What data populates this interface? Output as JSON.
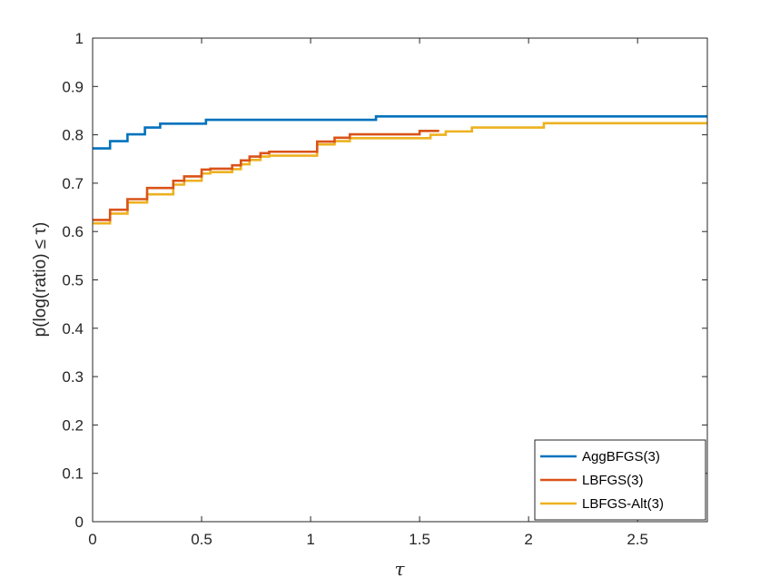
{
  "chart_data": {
    "type": "line",
    "step": true,
    "xlabel": "τ",
    "ylabel": "p(log(ratio) ≤ τ)",
    "xlim": [
      0,
      2.82
    ],
    "ylim": [
      0,
      1
    ],
    "xticks": [
      0,
      0.5,
      1,
      1.5,
      2,
      2.5
    ],
    "yticks": [
      0,
      0.1,
      0.2,
      0.3,
      0.4,
      0.5,
      0.6,
      0.7,
      0.8,
      0.9,
      1
    ],
    "xtick_labels": [
      "0",
      "0.5",
      "1",
      "1.5",
      "2",
      "2.5"
    ],
    "ytick_labels": [
      "0",
      "0.1",
      "0.2",
      "0.3",
      "0.4",
      "0.5",
      "0.6",
      "0.7",
      "0.8",
      "0.9",
      "1"
    ],
    "grid": false,
    "legend_position": "bottom-right",
    "series": [
      {
        "name": "AggBFGS(3)",
        "color": "#0072BD",
        "x": [
          0,
          0.08,
          0.16,
          0.24,
          0.31,
          0.52,
          1.3,
          2.82
        ],
        "y": [
          0.772,
          0.787,
          0.801,
          0.815,
          0.823,
          0.831,
          0.838,
          0.838
        ]
      },
      {
        "name": "LBFGS(3)",
        "color": "#D95319",
        "x": [
          0,
          0.08,
          0.16,
          0.25,
          0.37,
          0.42,
          0.5,
          0.54,
          0.64,
          0.68,
          0.72,
          0.77,
          0.81,
          1.03,
          1.11,
          1.18,
          1.5,
          1.59
        ],
        "y": [
          0.624,
          0.645,
          0.667,
          0.69,
          0.705,
          0.714,
          0.728,
          0.73,
          0.737,
          0.747,
          0.755,
          0.762,
          0.765,
          0.786,
          0.794,
          0.801,
          0.808,
          0.808
        ]
      },
      {
        "name": "LBFGS-Alt(3)",
        "color": "#EDB120",
        "x": [
          0,
          0.08,
          0.16,
          0.25,
          0.37,
          0.42,
          0.5,
          0.54,
          0.64,
          0.68,
          0.72,
          0.77,
          0.81,
          1.03,
          1.11,
          1.18,
          1.55,
          1.62,
          1.74,
          2.07,
          2.82
        ],
        "y": [
          0.617,
          0.637,
          0.66,
          0.677,
          0.697,
          0.705,
          0.72,
          0.723,
          0.729,
          0.739,
          0.748,
          0.755,
          0.757,
          0.78,
          0.787,
          0.793,
          0.8,
          0.807,
          0.815,
          0.824,
          0.824
        ]
      }
    ]
  }
}
